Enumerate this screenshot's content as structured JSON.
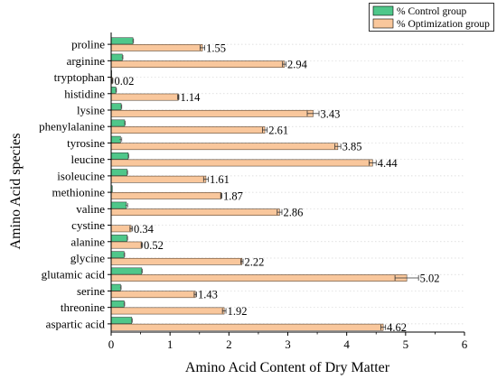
{
  "chart_data": {
    "type": "bar",
    "orientation": "horizontal",
    "xlabel": "Amino Acid Content of Dry Matter",
    "ylabel": "Amino Acid species",
    "xlim": [
      0,
      6
    ],
    "xticks": [
      0,
      1,
      2,
      3,
      4,
      5,
      6
    ],
    "grid": true,
    "legend_position": "top-right",
    "categories": [
      "proline",
      "arginine",
      "tryptophan",
      "histidine",
      "lysine",
      "phenylalanine",
      "tyrosine",
      "leucine",
      "isoleucine",
      "methionine",
      "valine",
      "cystine",
      "alanine",
      "glycine",
      "glutamic acid",
      "serine",
      "threonine",
      "aspartic acid"
    ],
    "series": [
      {
        "name": "% Control group",
        "color": "#4fc78a",
        "values": [
          0.37,
          0.19,
          0.01,
          0.08,
          0.17,
          0.23,
          0.16,
          0.29,
          0.27,
          0.02,
          0.26,
          0.0,
          0.27,
          0.22,
          0.52,
          0.16,
          0.22,
          0.35
        ],
        "errors": [
          0.01,
          0.01,
          0.0,
          0.01,
          0.01,
          0.01,
          0.02,
          0.01,
          0.01,
          0.0,
          0.02,
          0.0,
          0.01,
          0.01,
          0.01,
          0.01,
          0.01,
          0.01
        ]
      },
      {
        "name": "% Optimization group",
        "color": "#f9c79c",
        "values": [
          1.55,
          2.94,
          0.02,
          1.14,
          3.43,
          2.61,
          3.85,
          4.44,
          1.61,
          1.87,
          2.86,
          0.34,
          0.52,
          2.22,
          5.02,
          1.43,
          1.92,
          4.62
        ],
        "errors": [
          0.04,
          0.03,
          0.01,
          0.01,
          0.1,
          0.04,
          0.05,
          0.06,
          0.04,
          0.01,
          0.04,
          0.02,
          0.01,
          0.02,
          0.2,
          0.02,
          0.03,
          0.04
        ],
        "labels": [
          "1.55",
          "2.94",
          "0.02",
          "1.14",
          "3.43",
          "2.61",
          "3.85",
          "4.44",
          "1.61",
          "1.87",
          "2.86",
          "0.34",
          "0.52",
          "2.22",
          "5.02",
          "1.43",
          "1.92",
          "4.62"
        ]
      }
    ]
  }
}
